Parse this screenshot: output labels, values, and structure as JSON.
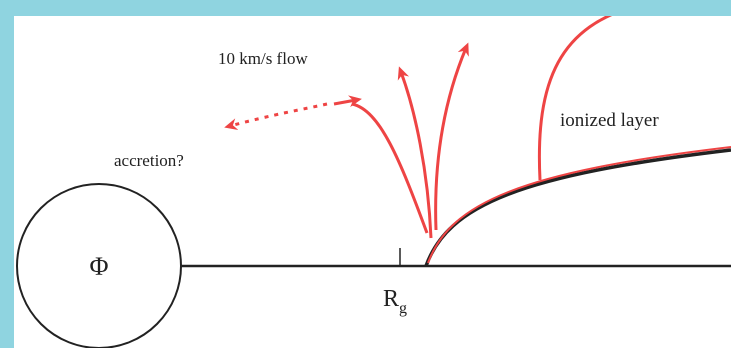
{
  "labels": {
    "flow": "10 km/s flow",
    "accretion": "accretion?",
    "ionized_layer": "ionized layer",
    "central_symbol": "Φ",
    "gravitational_radius": "R",
    "gravitational_radius_sub": "g"
  },
  "colors": {
    "background_frame": "#8fd4e0",
    "panel": "#ffffff",
    "flow_arrow": "#ee4444",
    "line": "#222222"
  }
}
